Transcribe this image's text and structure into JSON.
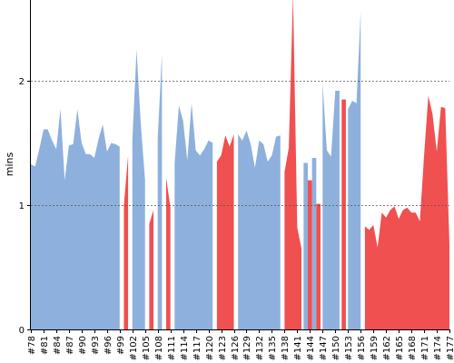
{
  "chart_data": {
    "type": "area",
    "title": "",
    "xlabel": "",
    "ylabel": "mins",
    "ylim": [
      0,
      2.65
    ],
    "yticks": [
      0,
      1,
      2
    ],
    "grid": true,
    "x": [
      78,
      79,
      80,
      81,
      82,
      83,
      84,
      85,
      86,
      87,
      88,
      89,
      90,
      91,
      92,
      93,
      94,
      95,
      96,
      97,
      98,
      99,
      100,
      101,
      102,
      103,
      104,
      105,
      106,
      107,
      108,
      109,
      110,
      111,
      112,
      113,
      114,
      115,
      116,
      117,
      118,
      119,
      120,
      121,
      122,
      123,
      124,
      125,
      126,
      127,
      128,
      129,
      130,
      131,
      132,
      133,
      134,
      135,
      136,
      137,
      138,
      139,
      140,
      141,
      142,
      143,
      144,
      145,
      146,
      147,
      148,
      149,
      150,
      151,
      152,
      153,
      154,
      155,
      156,
      157,
      158,
      159,
      160,
      161,
      162,
      163,
      164,
      165,
      166,
      167,
      168,
      169,
      170,
      171,
      172,
      173,
      174,
      175,
      176,
      177
    ],
    "xtick_labels": [
      "#78",
      "#81",
      "#84",
      "#87",
      "#90",
      "#93",
      "#96",
      "#99",
      "#102",
      "#105",
      "#108",
      "#111",
      "#114",
      "#117",
      "#120",
      "#123",
      "#126",
      "#129",
      "#132",
      "#135",
      "#138",
      "#141",
      "#144",
      "#147",
      "#150",
      "#153",
      "#156",
      "#159",
      "#162",
      "#165",
      "#168",
      "#171",
      "#174",
      "#177"
    ],
    "series": [
      {
        "color": "#8eb0dc",
        "values": [
          1.33,
          1.31,
          1.45,
          1.61,
          1.61,
          1.52,
          1.45,
          1.77,
          1.2,
          1.48,
          1.49,
          1.77,
          1.5,
          1.41,
          1.41,
          1.38,
          1.53,
          1.65,
          1.43,
          1.5,
          1.49,
          1.47,
          null,
          null,
          1.52,
          2.25,
          1.65,
          1.2,
          null,
          null,
          1.53,
          2.22,
          null,
          null,
          1.34,
          1.8,
          1.68,
          1.36,
          1.82,
          1.44,
          1.4,
          1.45,
          1.52,
          1.5,
          null,
          null,
          null,
          null,
          null,
          1.57,
          1.52,
          1.6,
          1.49,
          1.3,
          1.52,
          1.49,
          1.35,
          1.4,
          1.55,
          1.56,
          null,
          null,
          null,
          null,
          null,
          1.34,
          null,
          1.38,
          null,
          1.98,
          1.44,
          1.39,
          1.92,
          1.92,
          null,
          1.77,
          1.84,
          1.82,
          2.55,
          null,
          null,
          null,
          null,
          null,
          null,
          null,
          null,
          null,
          null,
          null,
          null,
          null,
          null,
          null,
          null,
          null,
          null,
          null,
          null,
          null
        ]
      },
      {
        "color": "#f05050",
        "values": [
          null,
          null,
          null,
          null,
          null,
          null,
          null,
          null,
          null,
          null,
          null,
          null,
          null,
          null,
          null,
          null,
          null,
          null,
          null,
          null,
          null,
          null,
          1.0,
          1.4,
          null,
          null,
          null,
          null,
          0.85,
          0.96,
          null,
          null,
          1.22,
          0.98,
          null,
          null,
          null,
          null,
          null,
          null,
          null,
          null,
          null,
          null,
          1.35,
          1.4,
          1.56,
          1.47,
          1.57,
          null,
          null,
          null,
          null,
          null,
          null,
          null,
          null,
          null,
          null,
          null,
          1.27,
          1.46,
          2.7,
          0.82,
          0.65,
          null,
          1.2,
          null,
          1.01,
          null,
          null,
          null,
          null,
          null,
          1.85,
          null,
          null,
          null,
          null,
          0.83,
          0.8,
          0.84,
          0.66,
          0.94,
          0.9,
          0.96,
          0.99,
          0.89,
          0.96,
          0.98,
          0.94,
          0.94,
          0.87,
          1.4,
          1.88,
          1.73,
          1.43,
          1.79,
          1.78,
          0.68
        ]
      }
    ]
  }
}
